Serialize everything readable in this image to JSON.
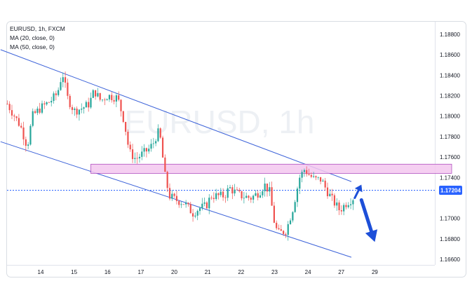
{
  "legend": {
    "symbol_line": "EURUSD, 1h, FXCM",
    "ma20_line": "MA (20, close, 0)",
    "ma50_line": "MA (50, close, 0)"
  },
  "watermark": "EURUSD, 1h",
  "colors": {
    "up": "#26a69a",
    "down": "#ef5350",
    "channel": "#3d63d9",
    "zone_fill": "#f3c7ef",
    "zone_stroke": "#b04ec0",
    "arrow": "#1d4fd8",
    "price_tag": "#2962ff",
    "grid_axis_text": "#131722"
  },
  "chart_data": {
    "type": "candlestick",
    "symbol": "EURUSD",
    "timeframe": "1h",
    "broker": "FXCM",
    "x_tick_labels": [
      "14",
      "15",
      "16",
      "17",
      "20",
      "21",
      "22",
      "23",
      "24",
      "27",
      "29"
    ],
    "y_tick_labels": [
      "1.18800",
      "1.18600",
      "1.18400",
      "1.18200",
      "1.18000",
      "1.17800",
      "1.17600",
      "1.17400",
      "1.17000",
      "1.16800",
      "1.16600"
    ],
    "ylim": [
      1.1652,
      1.1898
    ],
    "current_price_label": "1.17204",
    "current_price": 1.17204,
    "price_path": [
      [
        13.0,
        1.1812
      ],
      [
        13.4,
        1.179
      ],
      [
        13.6,
        1.177
      ],
      [
        13.75,
        1.18
      ],
      [
        14.0,
        1.1808
      ],
      [
        14.3,
        1.1815
      ],
      [
        14.5,
        1.1822
      ],
      [
        14.65,
        1.1843
      ],
      [
        14.8,
        1.1818
      ],
      [
        15.0,
        1.1805
      ],
      [
        15.25,
        1.1808
      ],
      [
        15.45,
        1.1812
      ],
      [
        15.6,
        1.1825
      ],
      [
        15.8,
        1.1815
      ],
      [
        16.0,
        1.182
      ],
      [
        16.3,
        1.1818
      ],
      [
        16.5,
        1.1795
      ],
      [
        16.65,
        1.1765
      ],
      [
        16.85,
        1.1758
      ],
      [
        17.0,
        1.1762
      ],
      [
        17.25,
        1.1768
      ],
      [
        17.4,
        1.1775
      ],
      [
        17.5,
        1.1785
      ],
      [
        17.6,
        1.1776
      ],
      [
        17.7,
        1.1745
      ],
      [
        17.85,
        1.1722
      ],
      [
        18.05,
        1.1718
      ],
      [
        18.3,
        1.1715
      ],
      [
        18.55,
        1.1705
      ],
      [
        18.75,
        1.171
      ],
      [
        18.95,
        1.1712
      ],
      [
        19.1,
        1.1722
      ],
      [
        19.3,
        1.1722
      ],
      [
        19.5,
        1.1722
      ],
      [
        19.65,
        1.173
      ],
      [
        19.8,
        1.1726
      ],
      [
        20.0,
        1.1722
      ],
      [
        20.3,
        1.172
      ],
      [
        20.55,
        1.1726
      ],
      [
        20.7,
        1.1733
      ],
      [
        20.85,
        1.1726
      ],
      [
        21.0,
        1.1695
      ],
      [
        21.1,
        1.1685
      ],
      [
        21.35,
        1.1688
      ],
      [
        21.55,
        1.171
      ],
      [
        21.75,
        1.174
      ],
      [
        21.9,
        1.1748
      ],
      [
        22.05,
        1.1742
      ],
      [
        22.2,
        1.1738
      ],
      [
        22.4,
        1.1738
      ],
      [
        22.55,
        1.1728
      ],
      [
        22.75,
        1.1717
      ],
      [
        22.95,
        1.1708
      ],
      [
        23.15,
        1.1715
      ],
      [
        23.35,
        1.172
      ]
    ],
    "channel": {
      "upper": [
        [
          12.8,
          1.1865
        ],
        [
          23.3,
          1.1736
        ]
      ],
      "lower": [
        [
          12.8,
          1.1775
        ],
        [
          23.3,
          1.1662
        ]
      ]
    },
    "resistance_zone": {
      "x": [
        15.5,
        26.3
      ],
      "y": [
        1.1744,
        1.1753
      ]
    },
    "annotations": [
      {
        "type": "arrow",
        "direction": "up",
        "from": [
          23.4,
          1.172
        ],
        "to": [
          23.6,
          1.1733
        ]
      },
      {
        "type": "arrow",
        "direction": "down",
        "from": [
          23.6,
          1.1718
        ],
        "to": [
          24.0,
          1.1677
        ]
      }
    ]
  }
}
